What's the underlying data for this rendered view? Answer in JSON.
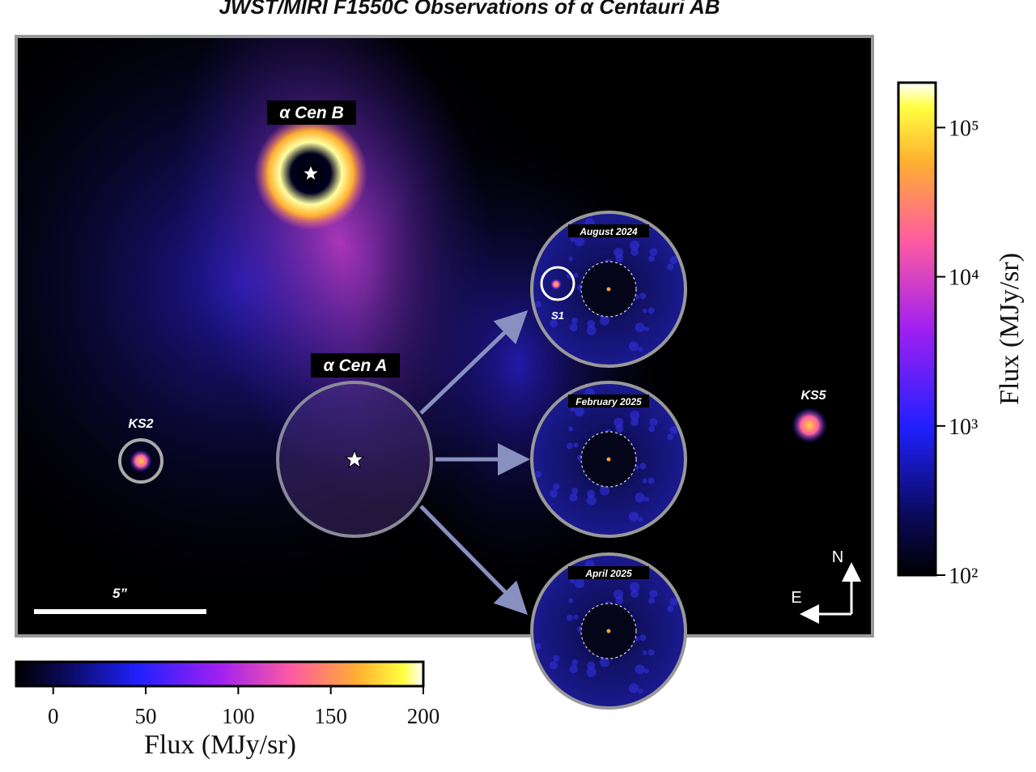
{
  "title": "JWST/MIRI F1550C Observations of α Centauri AB",
  "labels": {
    "cen_b": "α Cen B",
    "cen_a": "α Cen A",
    "ks2": "KS2",
    "ks5": "KS5",
    "s1": "S1",
    "scale": "5”",
    "north": "N",
    "east": "E"
  },
  "insets": [
    "August 2024",
    "February 2025",
    "April 2025"
  ],
  "colorbar_linear": {
    "label": "Flux (MJy/sr)",
    "lim": [
      -20,
      200
    ],
    "log": false,
    "ticks": [
      0,
      50,
      100,
      150,
      200
    ]
  },
  "colorbar_log": {
    "label": "Flux (MJy/sr)",
    "lim": [
      100,
      200000
    ],
    "log": true,
    "ticks": [
      {
        "value": 100,
        "label": "10²"
      },
      {
        "value": 1000,
        "label": "10³"
      },
      {
        "value": 10000,
        "label": "10⁴"
      },
      {
        "value": 100000,
        "label": "10⁵"
      }
    ]
  }
}
